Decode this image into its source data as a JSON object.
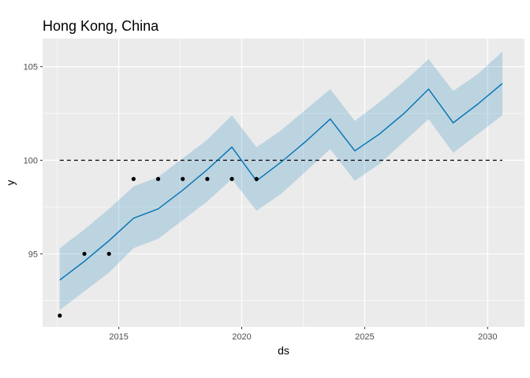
{
  "chart_data": {
    "type": "line",
    "title": "Hong Kong, China",
    "xlabel": "ds",
    "ylabel": "y",
    "xlim": [
      2011.9,
      2031.5
    ],
    "ylim": [
      91.1,
      106.5
    ],
    "x_ticks": [
      2015,
      2020,
      2025,
      2030
    ],
    "x_tick_labels": [
      "2015",
      "2020",
      "2025",
      "2030"
    ],
    "y_ticks": [
      95,
      100,
      105
    ],
    "y_tick_labels": [
      "95",
      "100",
      "105"
    ],
    "grid": true,
    "background": "#EBEBEB",
    "series": [
      {
        "type": "scatter",
        "color": "#000000",
        "x": [
          2012.6,
          2013.6,
          2014.6,
          2015.6,
          2016.6,
          2017.6,
          2018.6,
          2019.6,
          2020.6
        ],
        "y": [
          91.7,
          95,
          95,
          99,
          99,
          99,
          99,
          99,
          99
        ]
      },
      {
        "type": "line",
        "color": "#0072B2",
        "x": [
          2012.6,
          2013.6,
          2014.6,
          2015.6,
          2016.6,
          2017.6,
          2018.6,
          2019.6,
          2020.6,
          2021.6,
          2022.6,
          2023.6,
          2024.6,
          2025.6,
          2026.6,
          2027.6,
          2028.6,
          2029.6,
          2030.6
        ],
        "y": [
          93.6,
          94.6,
          95.7,
          96.9,
          97.4,
          98.4,
          99.5,
          100.7,
          98.9,
          99.9,
          101.0,
          102.2,
          100.5,
          101.4,
          102.5,
          103.8,
          102.0,
          103.0,
          104.1
        ]
      },
      {
        "type": "band",
        "color": "#0072B2",
        "x": [
          2012.6,
          2013.6,
          2014.6,
          2015.6,
          2016.6,
          2017.6,
          2018.6,
          2019.6,
          2020.6,
          2021.6,
          2022.6,
          2023.6,
          2024.6,
          2025.6,
          2026.6,
          2027.6,
          2028.6,
          2029.6,
          2030.6
        ],
        "lower": [
          92.0,
          93.0,
          94.0,
          95.3,
          95.8,
          96.8,
          97.8,
          99.0,
          97.3,
          98.2,
          99.4,
          100.6,
          98.9,
          99.8,
          101.0,
          102.2,
          100.4,
          101.4,
          102.4
        ],
        "upper": [
          95.3,
          96.3,
          97.4,
          98.6,
          99.1,
          100.1,
          101.1,
          102.4,
          100.7,
          101.6,
          102.7,
          103.8,
          102.1,
          103.1,
          104.2,
          105.4,
          103.7,
          104.6,
          105.8
        ]
      },
      {
        "type": "hline",
        "color": "#000000",
        "dash": "dashed",
        "y": 100,
        "x": [
          2012.6,
          2030.6
        ]
      }
    ]
  }
}
